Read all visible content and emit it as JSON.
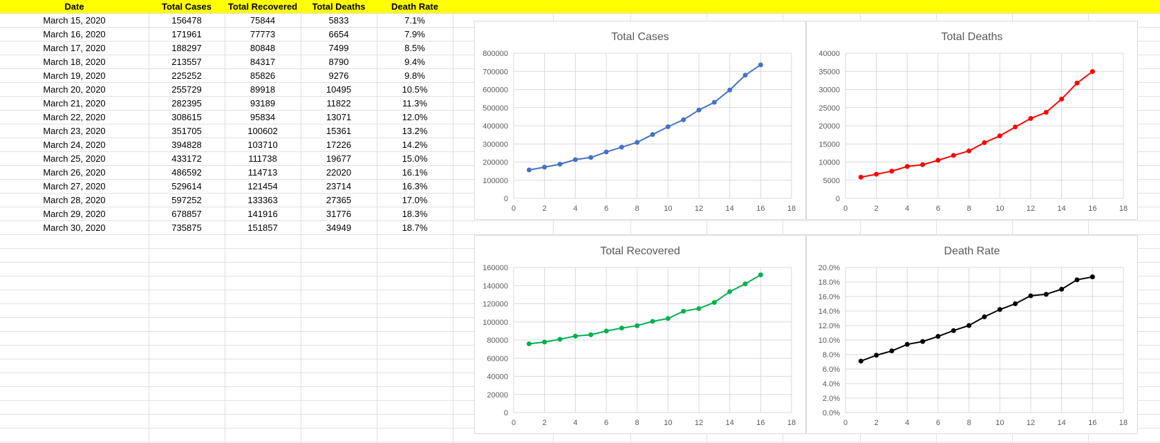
{
  "table": {
    "headers": [
      "Date",
      "Total Cases",
      "Total Recovered",
      "Total Deaths",
      "Death Rate"
    ],
    "header_bg": "#ffff00",
    "rows": [
      [
        "March 15, 2020",
        "156478",
        "75844",
        "5833",
        "7.1%"
      ],
      [
        "March 16, 2020",
        "171961",
        "77773",
        "6654",
        "7.9%"
      ],
      [
        "March 17, 2020",
        "188297",
        "80848",
        "7499",
        "8.5%"
      ],
      [
        "March 18, 2020",
        "213557",
        "84317",
        "8790",
        "9.4%"
      ],
      [
        "March 19, 2020",
        "225252",
        "85826",
        "9276",
        "9.8%"
      ],
      [
        "March 20, 2020",
        "255729",
        "89918",
        "10495",
        "10.5%"
      ],
      [
        "March 21, 2020",
        "282395",
        "93189",
        "11822",
        "11.3%"
      ],
      [
        "March 22, 2020",
        "308615",
        "95834",
        "13071",
        "12.0%"
      ],
      [
        "March 23, 2020",
        "351705",
        "100602",
        "15361",
        "13.2%"
      ],
      [
        "March 24, 2020",
        "394828",
        "103710",
        "17226",
        "14.2%"
      ],
      [
        "March 25, 2020",
        "433172",
        "111738",
        "19677",
        "15.0%"
      ],
      [
        "March 26, 2020",
        "486592",
        "114713",
        "22020",
        "16.1%"
      ],
      [
        "March 27, 2020",
        "529614",
        "121454",
        "23714",
        "16.3%"
      ],
      [
        "March 28, 2020",
        "597252",
        "133363",
        "27365",
        "17.0%"
      ],
      [
        "March 29, 2020",
        "678857",
        "141916",
        "31776",
        "18.3%"
      ],
      [
        "March 30, 2020",
        "735875",
        "151857",
        "34949",
        "18.7%"
      ]
    ]
  },
  "chart_data": [
    {
      "type": "scatter",
      "title": "Total Cases",
      "x": [
        1,
        2,
        3,
        4,
        5,
        6,
        7,
        8,
        9,
        10,
        11,
        12,
        13,
        14,
        15,
        16
      ],
      "y": [
        156478,
        171961,
        188297,
        213557,
        225252,
        255729,
        282395,
        308615,
        351705,
        394828,
        433172,
        486592,
        529614,
        597252,
        678857,
        735875
      ],
      "xlim": [
        0,
        18
      ],
      "ylim": [
        0,
        800000
      ],
      "xticks": [
        0,
        2,
        4,
        6,
        8,
        10,
        12,
        14,
        16,
        18
      ],
      "yticks": [
        0,
        100000,
        200000,
        300000,
        400000,
        500000,
        600000,
        700000,
        800000
      ],
      "ytick_format": "int",
      "color": "#4472c4",
      "grid": true,
      "lines": true
    },
    {
      "type": "scatter",
      "title": "Total Deaths",
      "x": [
        1,
        2,
        3,
        4,
        5,
        6,
        7,
        8,
        9,
        10,
        11,
        12,
        13,
        14,
        15,
        16
      ],
      "y": [
        5833,
        6654,
        7499,
        8790,
        9276,
        10495,
        11822,
        13071,
        15361,
        17226,
        19677,
        22020,
        23714,
        27365,
        31776,
        34949
      ],
      "xlim": [
        0,
        18
      ],
      "ylim": [
        0,
        40000
      ],
      "xticks": [
        0,
        2,
        4,
        6,
        8,
        10,
        12,
        14,
        16,
        18
      ],
      "yticks": [
        0,
        5000,
        10000,
        15000,
        20000,
        25000,
        30000,
        35000,
        40000
      ],
      "ytick_format": "int",
      "color": "#ff0000",
      "grid": true,
      "lines": true
    },
    {
      "type": "scatter",
      "title": "Total Recovered",
      "x": [
        1,
        2,
        3,
        4,
        5,
        6,
        7,
        8,
        9,
        10,
        11,
        12,
        13,
        14,
        15,
        16
      ],
      "y": [
        75844,
        77773,
        80848,
        84317,
        85826,
        89918,
        93189,
        95834,
        100602,
        103710,
        111738,
        114713,
        121454,
        133363,
        141916,
        151857
      ],
      "xlim": [
        0,
        18
      ],
      "ylim": [
        0,
        160000
      ],
      "xticks": [
        0,
        2,
        4,
        6,
        8,
        10,
        12,
        14,
        16,
        18
      ],
      "yticks": [
        0,
        20000,
        40000,
        60000,
        80000,
        100000,
        120000,
        140000,
        160000
      ],
      "ytick_format": "int",
      "color": "#00b050",
      "grid": true,
      "lines": true
    },
    {
      "type": "scatter",
      "title": "Death Rate",
      "x": [
        1,
        2,
        3,
        4,
        5,
        6,
        7,
        8,
        9,
        10,
        11,
        12,
        13,
        14,
        15,
        16
      ],
      "y": [
        7.1,
        7.9,
        8.5,
        9.4,
        9.8,
        10.5,
        11.3,
        12.0,
        13.2,
        14.2,
        15.0,
        16.1,
        16.3,
        17.0,
        18.3,
        18.7
      ],
      "xlim": [
        0,
        18
      ],
      "ylim": [
        0,
        20
      ],
      "xticks": [
        0,
        2,
        4,
        6,
        8,
        10,
        12,
        14,
        16,
        18
      ],
      "yticks": [
        0,
        2,
        4,
        6,
        8,
        10,
        12,
        14,
        16,
        18,
        20
      ],
      "ytick_format": "percent1",
      "color": "#000000",
      "grid": true,
      "lines": true
    }
  ]
}
